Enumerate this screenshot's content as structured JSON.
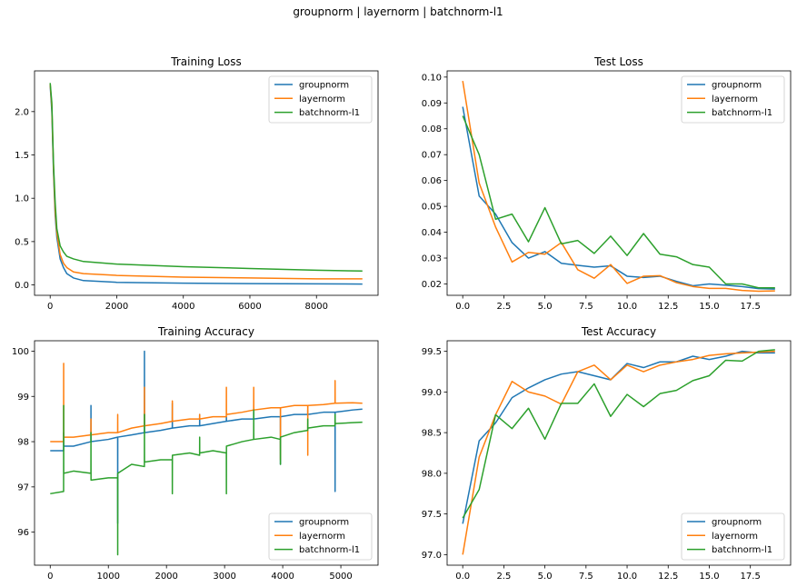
{
  "figure_title": "groupnorm | layernorm | batchnorm-l1",
  "colors": {
    "groupnorm": "#1f77b4",
    "layernorm": "#ff7f0e",
    "batchnorm-l1": "#2ca02c"
  },
  "chart_data": [
    {
      "id": "training-loss",
      "type": "line",
      "title": "Training Loss",
      "legend_position": "top-right",
      "xlim": [
        -470,
        9850
      ],
      "ylim": [
        -0.12,
        2.47
      ],
      "xticks": [
        0,
        2000,
        4000,
        6000,
        8000
      ],
      "xtick_labels": [
        "0",
        "2000",
        "4000",
        "6000",
        "8000"
      ],
      "yticks": [
        0.0,
        0.5,
        1.0,
        1.5,
        2.0
      ],
      "ytick_labels": [
        "0.0",
        "0.5",
        "1.0",
        "1.5",
        "2.0"
      ],
      "series": [
        {
          "name": "groupnorm",
          "x": [
            0,
            50,
            100,
            150,
            200,
            300,
            400,
            500,
            700,
            1000,
            2000,
            4000,
            6000,
            8000,
            9380
          ],
          "y": [
            2.3,
            2.0,
            1.3,
            0.8,
            0.55,
            0.3,
            0.2,
            0.13,
            0.08,
            0.05,
            0.03,
            0.02,
            0.015,
            0.012,
            0.01
          ]
        },
        {
          "name": "layernorm",
          "x": [
            0,
            50,
            100,
            150,
            200,
            300,
            400,
            500,
            700,
            1000,
            2000,
            4000,
            6000,
            8000,
            9380
          ],
          "y": [
            2.32,
            2.05,
            1.35,
            0.85,
            0.6,
            0.35,
            0.25,
            0.2,
            0.15,
            0.13,
            0.11,
            0.09,
            0.08,
            0.07,
            0.07
          ]
        },
        {
          "name": "batchnorm-l1",
          "x": [
            0,
            50,
            100,
            150,
            200,
            300,
            400,
            500,
            700,
            1000,
            2000,
            4000,
            6000,
            8000,
            9380
          ],
          "y": [
            2.33,
            2.1,
            1.4,
            0.95,
            0.65,
            0.45,
            0.38,
            0.33,
            0.3,
            0.27,
            0.24,
            0.21,
            0.19,
            0.17,
            0.16
          ]
        }
      ]
    },
    {
      "id": "test-loss",
      "type": "line",
      "title": "Test Loss",
      "legend_position": "top-right",
      "xlim": [
        -0.95,
        19.95
      ],
      "ylim": [
        0.0156,
        0.1024
      ],
      "xticks": [
        0,
        2.5,
        5,
        7.5,
        10,
        12.5,
        15,
        17.5
      ],
      "xtick_labels": [
        "0.0",
        "2.5",
        "5.0",
        "7.5",
        "10.0",
        "12.5",
        "15.0",
        "17.5"
      ],
      "yticks": [
        0.02,
        0.03,
        0.04,
        0.05,
        0.06,
        0.07,
        0.08,
        0.09,
        0.1
      ],
      "ytick_labels": [
        "0.02",
        "0.03",
        "0.04",
        "0.05",
        "0.06",
        "0.07",
        "0.08",
        "0.09",
        "0.10"
      ],
      "x": [
        0,
        1,
        2,
        3,
        4,
        5,
        6,
        7,
        8,
        9,
        10,
        11,
        12,
        13,
        14,
        15,
        16,
        17,
        18,
        19
      ],
      "series": [
        {
          "name": "groupnorm",
          "values": [
            0.0885,
            0.054,
            0.047,
            0.036,
            0.03,
            0.0325,
            0.028,
            0.0272,
            0.0265,
            0.027,
            0.023,
            0.0225,
            0.023,
            0.021,
            0.0193,
            0.02,
            0.0195,
            0.019,
            0.0182,
            0.018
          ]
        },
        {
          "name": "layernorm",
          "values": [
            0.0985,
            0.059,
            0.042,
            0.0285,
            0.0322,
            0.0315,
            0.036,
            0.0255,
            0.0222,
            0.0275,
            0.0202,
            0.023,
            0.0232,
            0.0205,
            0.019,
            0.0183,
            0.0183,
            0.0175,
            0.0172,
            0.0173
          ]
        },
        {
          "name": "batchnorm-l1",
          "values": [
            0.085,
            0.07,
            0.045,
            0.047,
            0.0363,
            0.0495,
            0.0355,
            0.0368,
            0.0318,
            0.0385,
            0.031,
            0.0395,
            0.0315,
            0.0305,
            0.0275,
            0.0265,
            0.02,
            0.02,
            0.0185,
            0.0185
          ]
        }
      ]
    },
    {
      "id": "training-accuracy",
      "type": "line",
      "title": "Training Accuracy",
      "legend_position": "bottom-right",
      "xlim": [
        -270,
        5640
      ],
      "ylim": [
        95.27,
        100.23
      ],
      "xticks": [
        0,
        1000,
        2000,
        3000,
        4000,
        5000
      ],
      "xtick_labels": [
        "0",
        "1000",
        "2000",
        "3000",
        "4000",
        "5000"
      ],
      "yticks": [
        96,
        97,
        98,
        99,
        100
      ],
      "ytick_labels": [
        "96",
        "97",
        "98",
        "99",
        "100"
      ],
      "series": [
        {
          "name": "groupnorm",
          "x": [
            0,
            230,
            231,
            232,
            400,
            700,
            701,
            702,
            1000,
            1160,
            1161,
            1162,
            1400,
            1620,
            1621,
            1622,
            1900,
            2100,
            2101,
            2102,
            2400,
            2570,
            2571,
            2572,
            2800,
            3030,
            3031,
            3032,
            3300,
            3500,
            3501,
            3502,
            3800,
            3960,
            3961,
            3962,
            4200,
            4430,
            4431,
            4432,
            4700,
            4900,
            4901,
            4902,
            5200,
            5370
          ],
          "y": [
            97.8,
            97.8,
            98.2,
            97.9,
            97.9,
            98.0,
            98.8,
            98.0,
            98.05,
            98.1,
            96.2,
            98.1,
            98.15,
            98.2,
            100.0,
            98.2,
            98.25,
            98.3,
            98.85,
            98.3,
            98.35,
            98.35,
            98.6,
            98.35,
            98.4,
            98.45,
            98.55,
            98.45,
            98.5,
            98.5,
            98.7,
            98.5,
            98.55,
            98.55,
            97.5,
            98.55,
            98.6,
            98.6,
            98.7,
            98.6,
            98.65,
            98.65,
            96.9,
            98.65,
            98.7,
            98.72
          ]
        },
        {
          "name": "layernorm",
          "x": [
            0,
            230,
            231,
            232,
            400,
            700,
            701,
            702,
            1000,
            1160,
            1161,
            1162,
            1400,
            1620,
            1621,
            1622,
            1900,
            2100,
            2101,
            2102,
            2400,
            2570,
            2571,
            2572,
            2800,
            3030,
            3031,
            3032,
            3300,
            3500,
            3501,
            3502,
            3800,
            3960,
            3961,
            3962,
            4200,
            4430,
            4431,
            4432,
            4700,
            4900,
            4901,
            4902,
            5200,
            5370
          ],
          "y": [
            98.0,
            98.0,
            99.73,
            98.1,
            98.1,
            98.15,
            98.5,
            98.15,
            98.2,
            98.2,
            98.6,
            98.2,
            98.3,
            98.35,
            99.2,
            98.35,
            98.4,
            98.45,
            98.9,
            98.45,
            98.5,
            98.5,
            98.6,
            98.5,
            98.55,
            98.55,
            99.2,
            98.6,
            98.65,
            98.7,
            99.2,
            98.7,
            98.75,
            98.75,
            97.6,
            98.75,
            98.8,
            98.8,
            97.7,
            98.8,
            98.82,
            98.85,
            99.35,
            98.85,
            98.86,
            98.85
          ]
        },
        {
          "name": "batchnorm-l1",
          "x": [
            0,
            230,
            231,
            232,
            400,
            700,
            701,
            702,
            1000,
            1160,
            1161,
            1162,
            1400,
            1620,
            1621,
            1622,
            1900,
            2100,
            2101,
            2102,
            2400,
            2570,
            2571,
            2572,
            2800,
            3030,
            3031,
            3032,
            3300,
            3500,
            3501,
            3502,
            3800,
            3960,
            3961,
            3962,
            4200,
            4430,
            4431,
            4432,
            4700,
            4900,
            4901,
            4902,
            5200,
            5370
          ],
          "y": [
            96.85,
            96.9,
            98.8,
            97.3,
            97.35,
            97.3,
            98.2,
            97.15,
            97.2,
            97.2,
            95.5,
            97.3,
            97.5,
            97.45,
            98.6,
            97.55,
            97.6,
            97.6,
            96.85,
            97.7,
            97.75,
            97.7,
            98.1,
            97.75,
            97.8,
            97.75,
            96.85,
            97.9,
            98.0,
            98.05,
            98.7,
            98.05,
            98.1,
            98.05,
            97.5,
            98.1,
            98.2,
            98.25,
            98.5,
            98.3,
            98.35,
            98.35,
            98.6,
            98.4,
            98.42,
            98.43
          ]
        }
      ]
    },
    {
      "id": "test-accuracy",
      "type": "line",
      "title": "Test Accuracy",
      "legend_position": "bottom-right",
      "xlim": [
        -0.95,
        19.95
      ],
      "ylim": [
        96.87,
        99.63
      ],
      "xticks": [
        0,
        2.5,
        5,
        7.5,
        10,
        12.5,
        15,
        17.5
      ],
      "xtick_labels": [
        "0.0",
        "2.5",
        "5.0",
        "7.5",
        "10.0",
        "12.5",
        "15.0",
        "17.5"
      ],
      "yticks": [
        97.0,
        97.5,
        98.0,
        98.5,
        99.0,
        99.5
      ],
      "ytick_labels": [
        "97.0",
        "97.5",
        "98.0",
        "98.5",
        "99.0",
        "99.5"
      ],
      "x": [
        0,
        1,
        2,
        3,
        4,
        5,
        6,
        7,
        8,
        9,
        10,
        11,
        12,
        13,
        14,
        15,
        16,
        17,
        18,
        19
      ],
      "series": [
        {
          "name": "groupnorm",
          "values": [
            97.38,
            98.4,
            98.62,
            98.93,
            99.05,
            99.15,
            99.22,
            99.25,
            99.2,
            99.15,
            99.35,
            99.3,
            99.37,
            99.37,
            99.44,
            99.4,
            99.44,
            99.5,
            99.48,
            99.48
          ]
        },
        {
          "name": "layernorm",
          "values": [
            97.0,
            98.2,
            98.72,
            99.13,
            99.0,
            98.95,
            98.85,
            99.25,
            99.33,
            99.15,
            99.33,
            99.25,
            99.33,
            99.37,
            99.4,
            99.45,
            99.47,
            99.48,
            99.49,
            99.5
          ]
        },
        {
          "name": "batchnorm-l1",
          "values": [
            97.45,
            97.8,
            98.72,
            98.55,
            98.8,
            98.42,
            98.86,
            98.86,
            99.1,
            98.7,
            98.97,
            98.82,
            98.98,
            99.02,
            99.14,
            99.2,
            99.39,
            99.38,
            99.5,
            99.52
          ]
        }
      ]
    }
  ]
}
